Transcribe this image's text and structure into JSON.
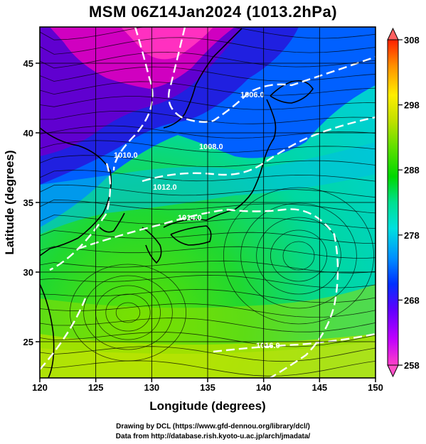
{
  "title": "MSM 06Z14Jan2024 (1013.2hPa)",
  "x_axis": {
    "label": "Longitude (degrees)",
    "ticks": [
      "120",
      "125",
      "130",
      "135",
      "140",
      "145",
      "150"
    ],
    "range": [
      120,
      150
    ]
  },
  "y_axis": {
    "label": "Latitude  (degrees)",
    "ticks": [
      "25",
      "30",
      "35",
      "40",
      "45"
    ],
    "range": [
      22.4,
      47.6
    ]
  },
  "colorbar": {
    "ticks": [
      "258",
      "268",
      "278",
      "288",
      "298",
      "308"
    ],
    "range": [
      258,
      308
    ],
    "colors": [
      "#ff40c8",
      "#c000ff",
      "#6000ff",
      "#0030ff",
      "#0090ff",
      "#00e0e0",
      "#00e090",
      "#00d800",
      "#60e000",
      "#c0e000",
      "#ffee00",
      "#ff9000",
      "#ff2000"
    ]
  },
  "contours": {
    "labels": [
      "1006.0",
      "1008.0",
      "1010.0",
      "1012.0",
      "1014.0",
      "1016.0"
    ]
  },
  "credits": {
    "line1": "Drawing by DCL (https://www.gfd-dennou.org/library/dcl/)",
    "line2": "Data from http://database.rish.kyoto-u.ac.jp/arch/jmadata/"
  }
}
